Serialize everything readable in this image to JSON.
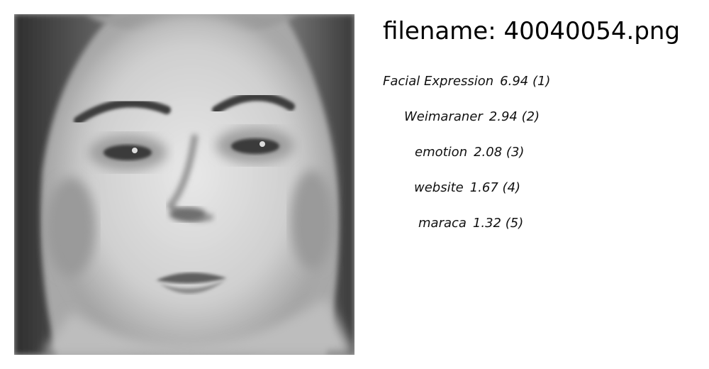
{
  "header": {
    "filename_prefix": "filename:",
    "filename": "40040054.png"
  },
  "photo": {
    "subject": "grayscale-face-photo"
  },
  "predictions": [
    {
      "label": "Facial Expression",
      "score": "6.94",
      "rank": "(1)"
    },
    {
      "label": "Weimaraner",
      "score": "2.94",
      "rank": "(2)"
    },
    {
      "label": "emotion",
      "score": "2.08",
      "rank": "(3)"
    },
    {
      "label": "website",
      "score": "1.67",
      "rank": "(4)"
    },
    {
      "label": "maraca",
      "score": "1.32",
      "rank": "(5)"
    }
  ]
}
